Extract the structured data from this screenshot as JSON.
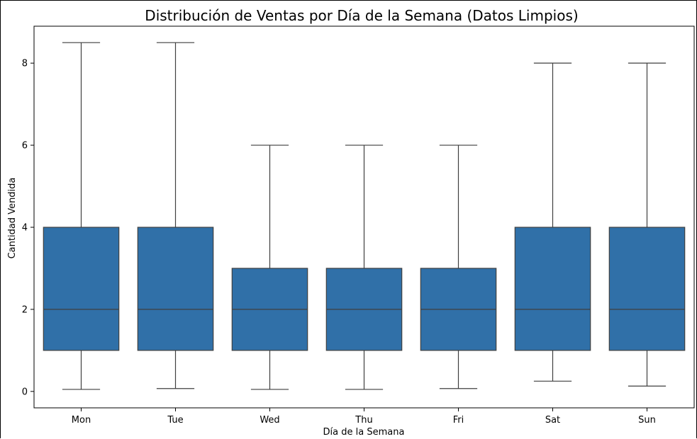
{
  "chart_data": {
    "type": "boxplot",
    "title": "Distribución de Ventas por Día de la Semana (Datos Limpios)",
    "xlabel": "Día de la Semana",
    "ylabel": "Cantidad Vendida",
    "categories": [
      "Mon",
      "Tue",
      "Wed",
      "Thu",
      "Fri",
      "Sat",
      "Sun"
    ],
    "boxes": [
      {
        "whisker_low": 0.05,
        "q1": 1,
        "median": 2,
        "q3": 4,
        "whisker_high": 8.5
      },
      {
        "whisker_low": 0.07,
        "q1": 1,
        "median": 2,
        "q3": 4,
        "whisker_high": 8.5
      },
      {
        "whisker_low": 0.05,
        "q1": 1,
        "median": 2,
        "q3": 3,
        "whisker_high": 6
      },
      {
        "whisker_low": 0.05,
        "q1": 1,
        "median": 2,
        "q3": 3,
        "whisker_high": 6
      },
      {
        "whisker_low": 0.07,
        "q1": 1,
        "median": 2,
        "q3": 3,
        "whisker_high": 6
      },
      {
        "whisker_low": 0.25,
        "q1": 1,
        "median": 2,
        "q3": 4,
        "whisker_high": 8
      },
      {
        "whisker_low": 0.13,
        "q1": 1,
        "median": 2,
        "q3": 4,
        "whisker_high": 8
      }
    ],
    "yticks": [
      0,
      2,
      4,
      6,
      8
    ],
    "ylim": [
      -0.4,
      8.9
    ],
    "box_color": "#3070a8",
    "line_color": "#3f3f3f",
    "grid": false
  }
}
